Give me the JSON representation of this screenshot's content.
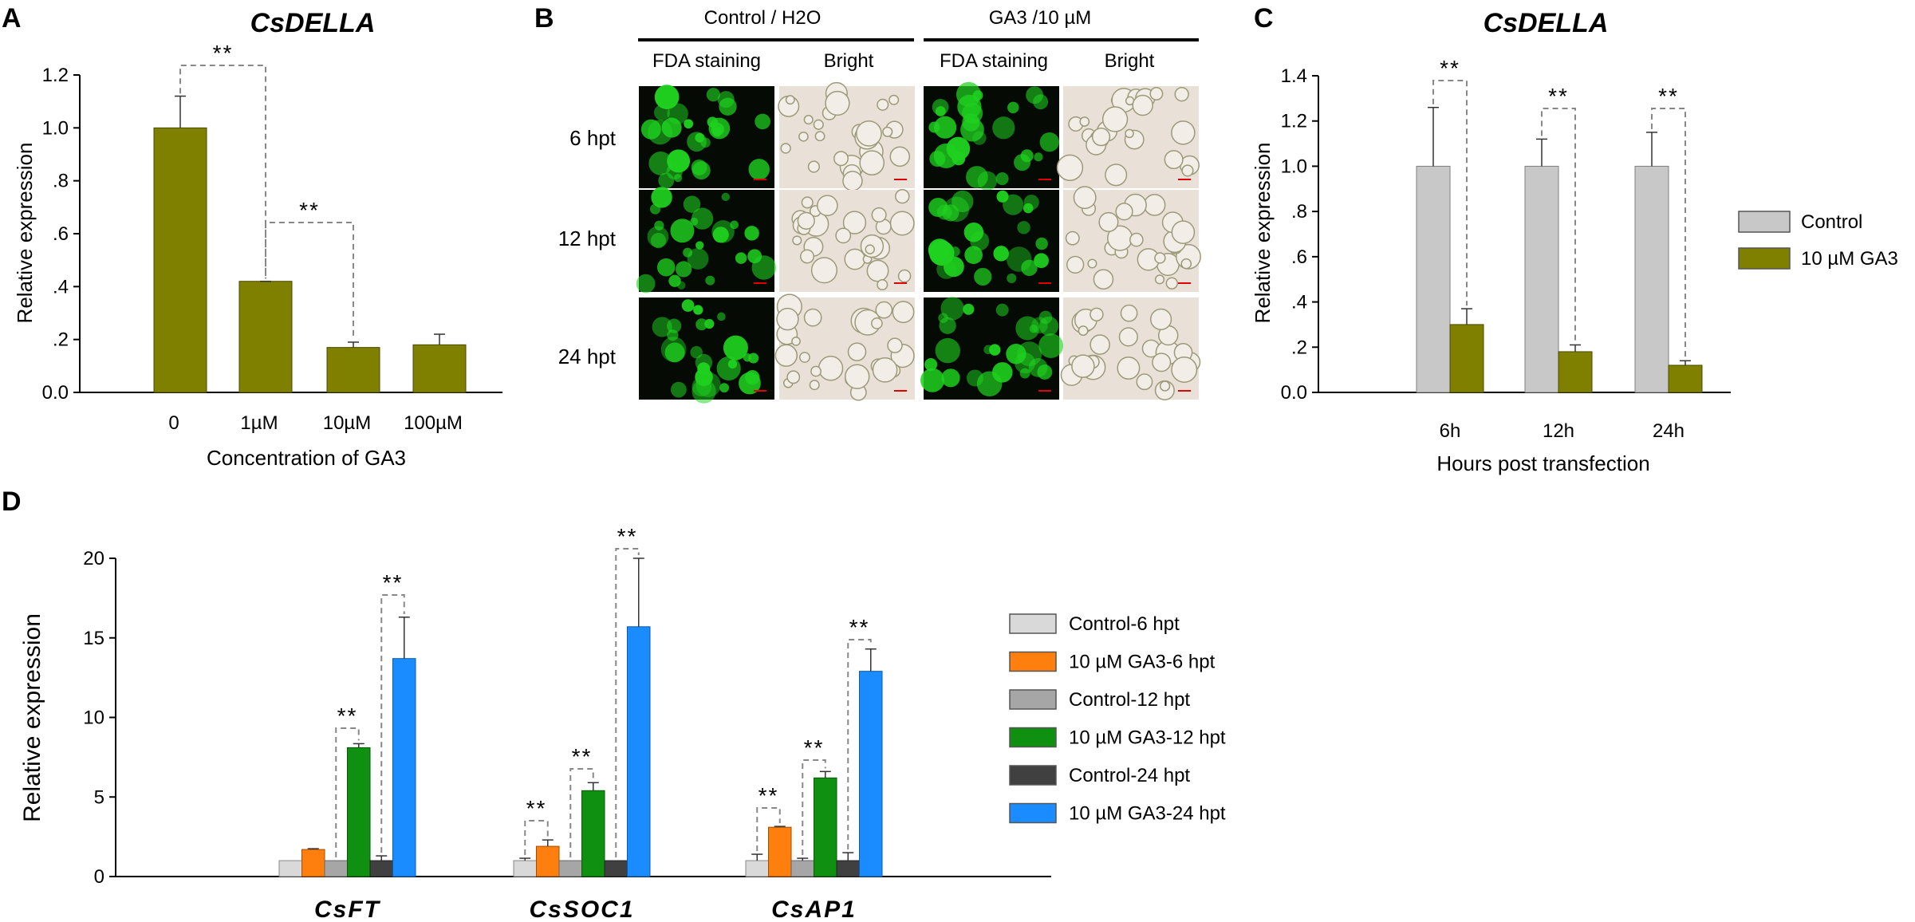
{
  "panels": {
    "A": {
      "label": "A",
      "title": "CsDELLA"
    },
    "B": {
      "label": "B",
      "groups": [
        "Control / H2O",
        "GA3 /10 µM"
      ],
      "columns": [
        "FDA staining",
        "Bright",
        "FDA staining",
        "Bright"
      ],
      "rows": [
        "6 hpt",
        "12 hpt",
        "24 hpt"
      ]
    },
    "C": {
      "label": "C",
      "title": "CsDELLA"
    },
    "D": {
      "label": "D"
    }
  },
  "colors": {
    "olive": "#7f7f00",
    "control_gray": "#c8c8c8",
    "ctrl6": "#d9d9d9",
    "orange": "#ff7f0e",
    "ctrl12": "#a6a6a6",
    "green": "#109010",
    "ctrl24": "#404040",
    "blue": "#1a8cff"
  },
  "chart_data": [
    {
      "panel": "A",
      "type": "bar",
      "title": "CsDELLA",
      "categories": [
        "0",
        "1µM",
        "10µM",
        "100µM"
      ],
      "values": [
        1.0,
        0.42,
        0.17,
        0.18
      ],
      "errors": [
        0.12,
        0.0,
        0.02,
        0.04
      ],
      "xlabel": "Concentration of GA3",
      "ylabel": "Relative expression",
      "ylim": [
        0,
        1.2
      ],
      "yticks": [
        "0.0",
        ".2",
        ".4",
        ".6",
        ".8",
        "1.0",
        "1.2"
      ],
      "significance": [
        "**",
        "**"
      ],
      "grid": false
    },
    {
      "panel": "C",
      "type": "bar",
      "title": "CsDELLA",
      "categories": [
        "6h",
        "12h",
        "24h"
      ],
      "series": [
        {
          "name": "Control",
          "values": [
            1.0,
            1.0,
            1.0
          ],
          "errors": [
            0.26,
            0.12,
            0.15
          ]
        },
        {
          "name": "10 µM GA3",
          "values": [
            0.3,
            0.18,
            0.12
          ],
          "errors": [
            0.07,
            0.03,
            0.02
          ]
        }
      ],
      "xlabel": "Hours post transfection",
      "ylabel": "Relative expression",
      "ylim": [
        0,
        1.4
      ],
      "yticks": [
        "0.0",
        ".2",
        ".4",
        ".6",
        ".8",
        "1.0",
        "1.2",
        "1.4"
      ],
      "significance": [
        "**",
        "**",
        "**"
      ],
      "legend": "right",
      "grid": false
    },
    {
      "panel": "D",
      "type": "bar",
      "categories": [
        "CsFT",
        "CsSOC1",
        "CsAP1"
      ],
      "series": [
        {
          "name": "Control-6 hpt",
          "values": [
            1.0,
            1.0,
            1.0
          ],
          "errors": [
            0.0,
            0.15,
            0.4
          ]
        },
        {
          "name": "10 µM GA3-6 hpt",
          "values": [
            1.7,
            1.9,
            3.1
          ],
          "errors": [
            0.05,
            0.4,
            0.05
          ]
        },
        {
          "name": "Control-12 hpt",
          "values": [
            1.0,
            1.0,
            1.0
          ],
          "errors": [
            0.0,
            0.0,
            0.15
          ]
        },
        {
          "name": "10 µM GA3-12 hpt",
          "values": [
            8.1,
            5.4,
            6.2
          ],
          "errors": [
            0.25,
            0.5,
            0.4
          ]
        },
        {
          "name": "Control-24 hpt",
          "values": [
            1.0,
            1.0,
            1.0
          ],
          "errors": [
            0.3,
            0.0,
            0.5
          ]
        },
        {
          "name": "10 µM GA3-24 hpt",
          "values": [
            13.7,
            15.7,
            12.9
          ],
          "errors": [
            2.6,
            4.3,
            1.4
          ]
        }
      ],
      "ylabel": "Relative expression",
      "ylim": [
        0,
        20
      ],
      "yticks": [
        "0",
        "5",
        "10",
        "15",
        "20"
      ],
      "significance": [
        "**",
        "**",
        "**",
        "**",
        "**",
        "**",
        "**",
        "**"
      ],
      "legend": "right",
      "grid": false
    }
  ]
}
